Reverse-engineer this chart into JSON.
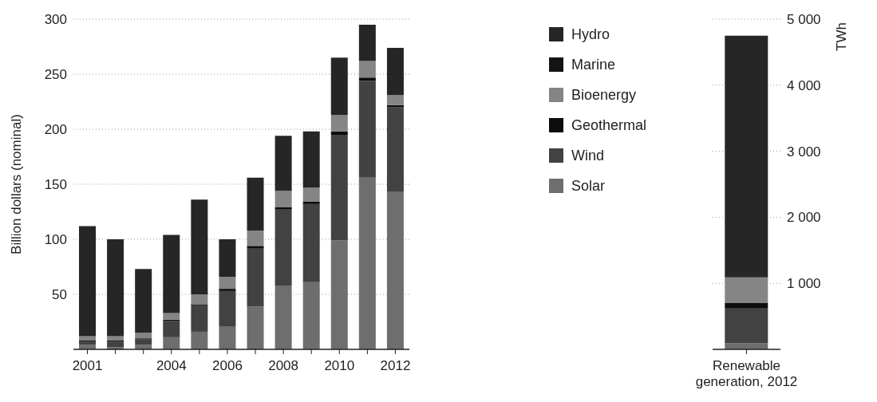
{
  "chart_data": [
    {
      "type": "bar",
      "stacked": true,
      "ylabel": "Billion dollars (nominal)",
      "categories": [
        "2001",
        null,
        null,
        "2004",
        null,
        "2006",
        null,
        "2008",
        null,
        "2010",
        null,
        "2012"
      ],
      "series": [
        {
          "name": "Solar",
          "color": "#6e6e6e",
          "values": [
            4,
            2,
            4,
            11,
            16,
            21,
            39,
            58,
            61,
            99,
            156,
            143
          ]
        },
        {
          "name": "Wind",
          "color": "#424242",
          "values": [
            3,
            5,
            5,
            15,
            24,
            32,
            53,
            69,
            71,
            96,
            88,
            77
          ]
        },
        {
          "name": "Geothermal",
          "color": "#0d0d0d",
          "values": [
            1,
            1,
            1,
            1,
            1,
            2,
            2,
            2,
            2,
            3,
            3,
            2
          ]
        },
        {
          "name": "Bioenergy",
          "color": "#858585",
          "values": [
            4,
            4,
            5,
            6,
            9,
            11,
            14,
            15,
            13,
            15,
            15,
            9
          ]
        },
        {
          "name": "Marine",
          "color": "#141414",
          "values": [
            0,
            0,
            0,
            0,
            0,
            0,
            0,
            0,
            0,
            0,
            0,
            0
          ]
        },
        {
          "name": "Hydro",
          "color": "#262626",
          "values": [
            100,
            88,
            58,
            71,
            86,
            34,
            48,
            50,
            51,
            52,
            33,
            43
          ]
        }
      ],
      "ylim": [
        0,
        300
      ],
      "yticks": [
        50,
        100,
        150,
        200,
        250,
        300
      ],
      "grid": "y",
      "legend": "right"
    },
    {
      "type": "bar",
      "stacked": true,
      "y2label": "TWh",
      "categories": [
        "Renewable generation, 2012"
      ],
      "series": [
        {
          "color": "#6e6e6e",
          "axis": "y2",
          "values": [
            90
          ]
        },
        {
          "color": "#424242",
          "axis": "y2",
          "values": [
            530
          ]
        },
        {
          "color": "#0d0d0d",
          "axis": "y2",
          "values": [
            80
          ]
        },
        {
          "color": "#858585",
          "axis": "y2",
          "values": [
            390
          ]
        },
        {
          "color": "#141414",
          "axis": "y2",
          "values": [
            0
          ]
        },
        {
          "color": "#262626",
          "axis": "y2",
          "values": [
            3660
          ]
        }
      ],
      "y2lim": [
        0,
        5000
      ],
      "y2ticks": [
        {
          "value": 1000,
          "label": "1 000"
        },
        {
          "value": 2000,
          "label": "2 000"
        },
        {
          "value": 3000,
          "label": "3 000"
        },
        {
          "value": 4000,
          "label": "4 000"
        },
        {
          "value": 5000,
          "label": "5 000"
        }
      ],
      "grid": "y"
    }
  ]
}
